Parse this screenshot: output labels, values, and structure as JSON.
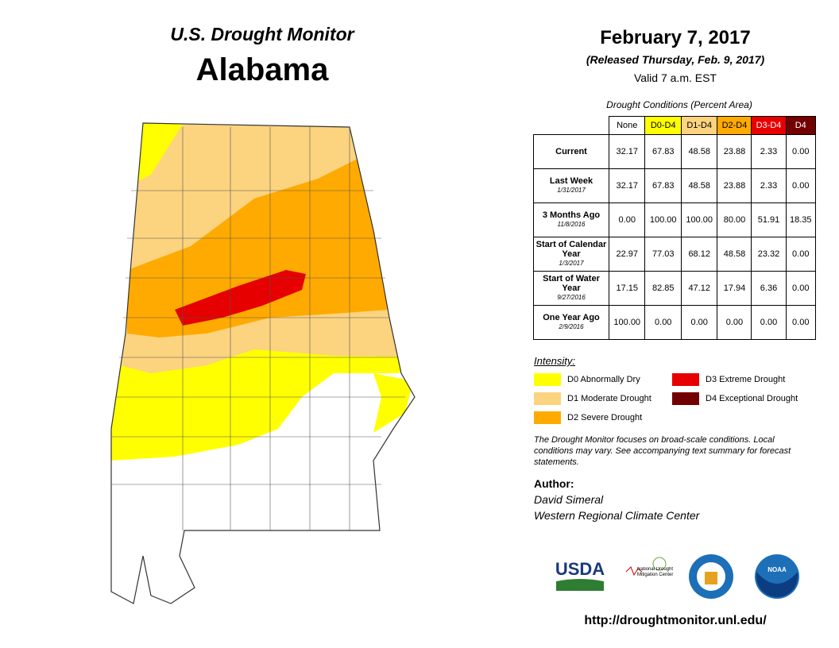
{
  "header": {
    "title": "U.S. Drought Monitor",
    "state": "Alabama"
  },
  "date": {
    "main": "February 7, 2017",
    "released": "(Released Thursday, Feb. 9, 2017)",
    "valid": "Valid 7 a.m. EST"
  },
  "table": {
    "caption": "Drought Conditions (Percent Area)",
    "columns": [
      {
        "label": "None",
        "color": "#ffffff",
        "text": "#000000"
      },
      {
        "label": "D0-D4",
        "color": "#ffff00",
        "text": "#000000"
      },
      {
        "label": "D1-D4",
        "color": "#fcd37f",
        "text": "#000000"
      },
      {
        "label": "D2-D4",
        "color": "#ffaa00",
        "text": "#000000"
      },
      {
        "label": "D3-D4",
        "color": "#e60000",
        "text": "#ffffff"
      },
      {
        "label": "D4",
        "color": "#730000",
        "text": "#ffffff"
      }
    ],
    "rows": [
      {
        "label": "Current",
        "values": [
          "32.17",
          "67.83",
          "48.58",
          "23.88",
          "2.33",
          "0.00"
        ]
      },
      {
        "label": "Last Week",
        "date": "1/31/2017",
        "values": [
          "32.17",
          "67.83",
          "48.58",
          "23.88",
          "2.33",
          "0.00"
        ]
      },
      {
        "label": "3 Months Ago",
        "date": "11/8/2016",
        "values": [
          "0.00",
          "100.00",
          "100.00",
          "80.00",
          "51.91",
          "18.35"
        ]
      },
      {
        "label": "Start of Calendar Year",
        "date": "1/3/2017",
        "values": [
          "22.97",
          "77.03",
          "68.12",
          "48.58",
          "23.32",
          "0.00"
        ]
      },
      {
        "label": "Start of Water Year",
        "date": "9/27/2016",
        "values": [
          "17.15",
          "82.85",
          "47.12",
          "17.94",
          "6.36",
          "0.00"
        ]
      },
      {
        "label": "One Year Ago",
        "date": "2/9/2016",
        "values": [
          "100.00",
          "0.00",
          "0.00",
          "0.00",
          "0.00",
          "0.00"
        ]
      }
    ]
  },
  "legend": {
    "title": "Intensity:",
    "items": [
      {
        "label": "D0 Abnormally Dry",
        "color": "#ffff00"
      },
      {
        "label": "D3 Extreme Drought",
        "color": "#e60000"
      },
      {
        "label": "D1 Moderate Drought",
        "color": "#fcd37f"
      },
      {
        "label": "D4 Exceptional Drought",
        "color": "#730000"
      },
      {
        "label": "D2 Severe Drought",
        "color": "#ffaa00"
      }
    ]
  },
  "note": "The Drought Monitor focuses on broad-scale conditions. Local conditions may vary. See accompanying text summary for forecast statements.",
  "author": {
    "heading": "Author:",
    "lines": [
      "David Simeral",
      "Western Regional Climate Center"
    ]
  },
  "logos": {
    "usda": "USDA",
    "ndmc": "National Drought Mitigation Center",
    "noaa": "NOAA"
  },
  "url": "http://droughtmonitor.unl.edu/"
}
